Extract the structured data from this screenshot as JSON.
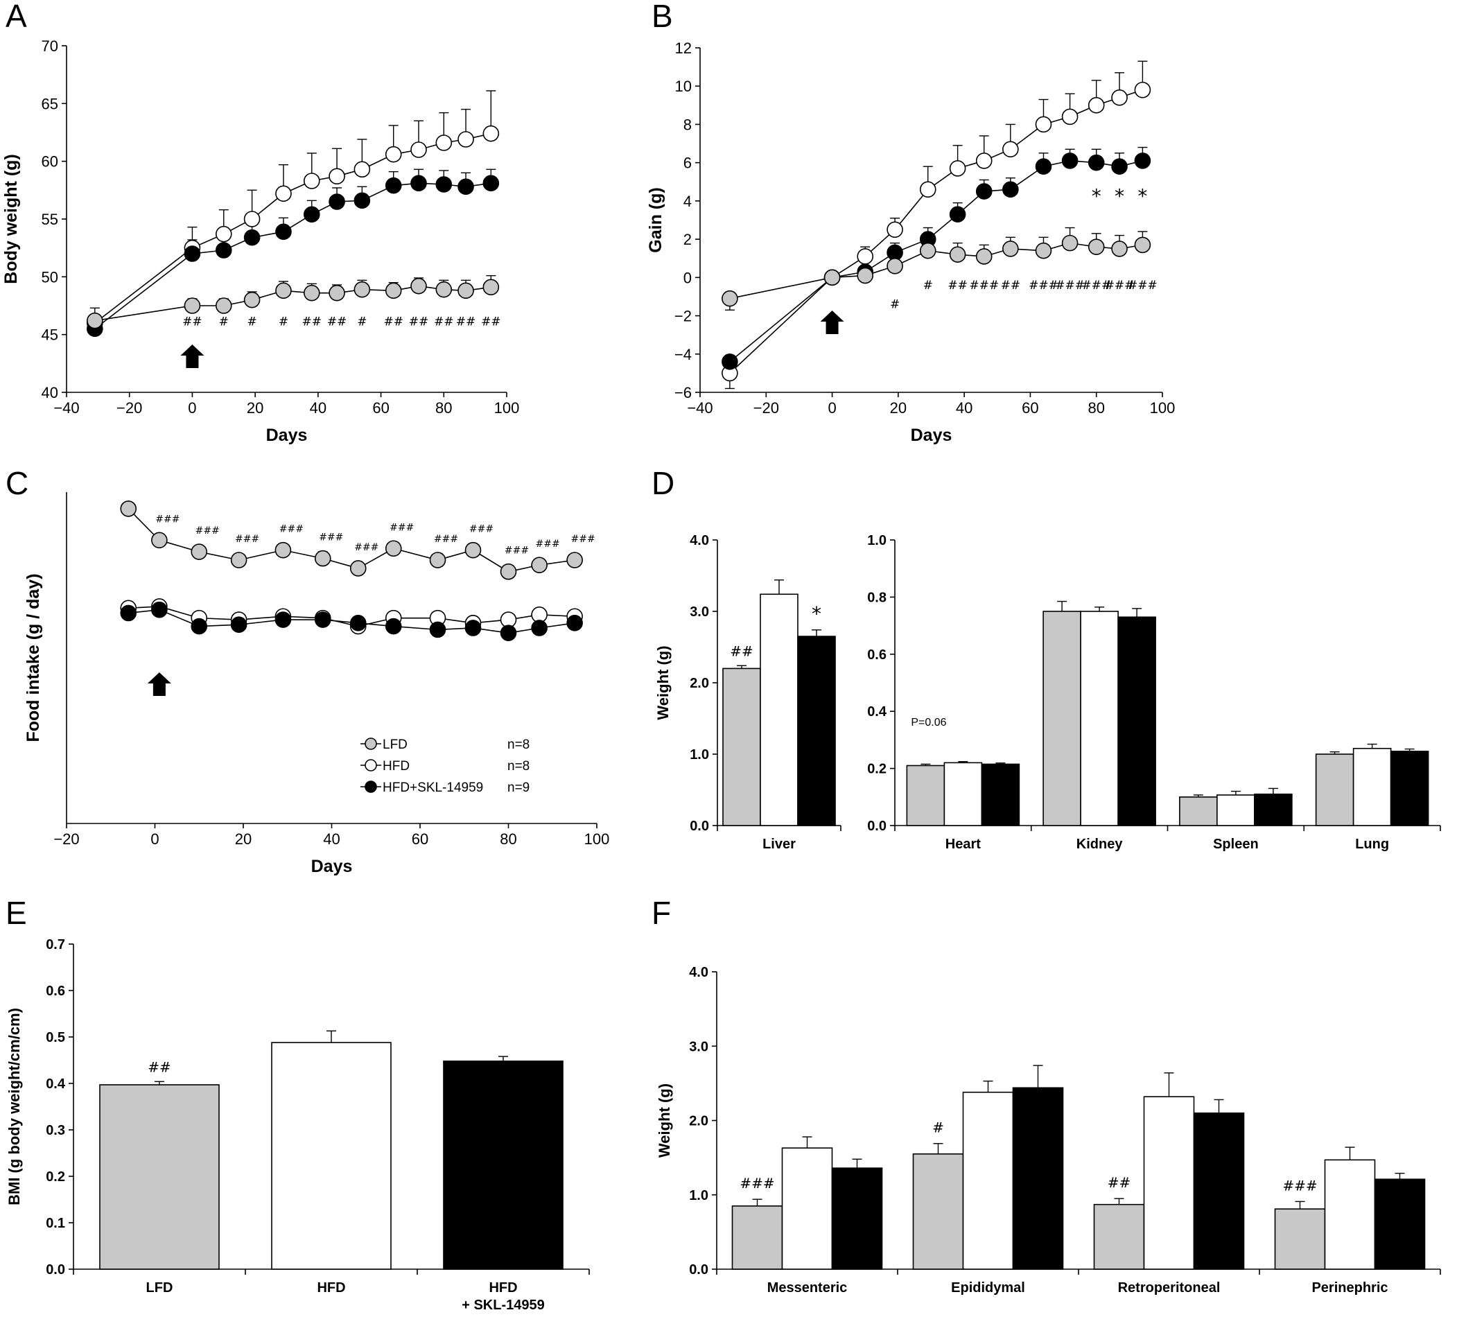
{
  "colors": {
    "lfd": "#c8c8c8",
    "hfd": "#ffffff",
    "skl": "#000000"
  },
  "chart_data": [
    {
      "id": "A",
      "type": "line",
      "panel_label": "A",
      "xlabel": "Days",
      "ylabel": "Body weight (g)",
      "xlim": [
        -40,
        100
      ],
      "ylim": [
        40,
        70
      ],
      "xticks": [
        "−40",
        "−20",
        "0",
        "20",
        "40",
        "60",
        "80",
        "100"
      ],
      "yticks": [
        "40",
        "45",
        "50",
        "55",
        "60",
        "65",
        "70"
      ],
      "x": [
        -31,
        0,
        10,
        19,
        29,
        38,
        46,
        54,
        64,
        72,
        80,
        87,
        95
      ],
      "series": [
        {
          "group": "HFD",
          "values": [
            46.0,
            52.5,
            53.7,
            55.0,
            57.2,
            58.3,
            58.7,
            59.3,
            60.6,
            61.0,
            61.6,
            61.9,
            62.4
          ],
          "errors": [
            0.7,
            1.8,
            2.1,
            2.5,
            2.5,
            2.4,
            2.4,
            2.6,
            2.5,
            2.5,
            2.6,
            2.6,
            3.7
          ]
        },
        {
          "group": "HFD+SKL-14959",
          "values": [
            45.5,
            52.0,
            52.3,
            53.4,
            53.9,
            55.4,
            56.5,
            56.6,
            57.9,
            58.1,
            58.0,
            57.8,
            58.1
          ],
          "errors": [
            1.0,
            1.2,
            1.1,
            1.2,
            1.2,
            1.2,
            1.2,
            1.2,
            1.2,
            1.2,
            1.2,
            1.2,
            1.2
          ]
        },
        {
          "group": "LFD",
          "values": [
            46.2,
            47.5,
            47.5,
            48.0,
            48.8,
            48.6,
            48.6,
            48.9,
            48.8,
            49.2,
            48.9,
            48.8,
            49.1
          ],
          "errors": [
            1.1,
            0.6,
            0.6,
            0.7,
            0.8,
            0.8,
            0.7,
            0.8,
            0.7,
            0.7,
            0.8,
            0.9,
            1.0
          ]
        }
      ],
      "sig_marks": [
        {
          "x": 0,
          "label": "##"
        },
        {
          "x": 10,
          "label": "#"
        },
        {
          "x": 19,
          "label": "#"
        },
        {
          "x": 29,
          "label": "#"
        },
        {
          "x": 38,
          "label": "##"
        },
        {
          "x": 46,
          "label": "##"
        },
        {
          "x": 54,
          "label": "#"
        },
        {
          "x": 64,
          "label": "##"
        },
        {
          "x": 72,
          "label": "##"
        },
        {
          "x": 80,
          "label": "##"
        },
        {
          "x": 87,
          "label": "##"
        },
        {
          "x": 95,
          "label": "##"
        }
      ],
      "arrow_x": 0
    },
    {
      "id": "B",
      "type": "line",
      "panel_label": "B",
      "xlabel": "Days",
      "ylabel": "Gain (g)",
      "xlim": [
        -40,
        100
      ],
      "ylim": [
        -6,
        12
      ],
      "xticks": [
        "−40",
        "−20",
        "0",
        "20",
        "40",
        "60",
        "80",
        "100"
      ],
      "yticks": [
        "−6",
        "−4",
        "−2",
        "0",
        "2",
        "4",
        "6",
        "8",
        "10",
        "12"
      ],
      "x": [
        -31,
        0,
        10,
        19,
        29,
        38,
        46,
        54,
        64,
        72,
        80,
        87,
        94
      ],
      "series": [
        {
          "group": "HFD",
          "values": [
            -5.0,
            0.0,
            1.1,
            2.5,
            4.6,
            5.7,
            6.1,
            6.7,
            8.0,
            8.4,
            9.0,
            9.4,
            9.8
          ],
          "errors": [
            0.8,
            0.0,
            0.5,
            0.6,
            1.2,
            1.2,
            1.3,
            1.3,
            1.3,
            1.2,
            1.3,
            1.3,
            1.5
          ]
        },
        {
          "group": "HFD+SKL-14959",
          "values": [
            -4.4,
            0.0,
            0.3,
            1.3,
            2.0,
            3.3,
            4.5,
            4.6,
            5.8,
            6.1,
            6.0,
            5.8,
            6.1
          ],
          "errors": [
            0.7,
            0.0,
            0.3,
            0.5,
            0.6,
            0.6,
            0.6,
            0.6,
            0.7,
            0.6,
            0.7,
            0.7,
            0.7
          ]
        },
        {
          "group": "LFD",
          "values": [
            -1.1,
            0.0,
            0.1,
            0.6,
            1.4,
            1.2,
            1.1,
            1.5,
            1.4,
            1.8,
            1.6,
            1.5,
            1.7
          ],
          "errors": [
            0.6,
            0.0,
            0.2,
            0.5,
            0.6,
            0.6,
            0.6,
            0.6,
            0.7,
            0.8,
            0.7,
            0.7,
            0.7
          ]
        }
      ],
      "sig_marks": [
        {
          "x": 19,
          "label": "#"
        },
        {
          "x": 29,
          "label": "#"
        },
        {
          "x": 38,
          "label": "##"
        },
        {
          "x": 46,
          "label": "###"
        },
        {
          "x": 54,
          "label": "##"
        },
        {
          "x": 64,
          "label": "###"
        },
        {
          "x": 72,
          "label": "###"
        },
        {
          "x": 80,
          "label": "###"
        },
        {
          "x": 87,
          "label": "###"
        },
        {
          "x": 94,
          "label": "###"
        }
      ],
      "star_marks": [
        {
          "x": 80,
          "label": "*"
        },
        {
          "x": 87,
          "label": "*"
        },
        {
          "x": 94,
          "label": "*"
        }
      ],
      "arrow_x": 0
    },
    {
      "id": "C",
      "type": "line",
      "panel_label": "C",
      "xlabel": "Days",
      "ylabel": "Food intake (g / day)",
      "xlim": [
        -20,
        100
      ],
      "ylim": [
        0,
        10
      ],
      "xticks": [
        "−20",
        "0",
        "20",
        "40",
        "60",
        "80",
        "100"
      ],
      "x": [
        -6,
        1,
        10,
        19,
        29,
        38,
        46,
        54,
        64,
        72,
        80,
        87,
        95
      ],
      "series": [
        {
          "group": "LFD",
          "values": [
            9.5,
            8.55,
            8.2,
            7.95,
            8.25,
            8.0,
            7.7,
            8.3,
            7.95,
            8.25,
            7.6,
            7.8,
            7.95
          ],
          "errors": [
            0.15,
            0.1,
            0.1,
            0.15,
            0.15,
            0.2,
            0.15,
            0.15,
            0.15,
            0.15,
            0.15,
            0.15,
            0.1
          ]
        },
        {
          "group": "HFD",
          "values": [
            6.5,
            6.55,
            6.2,
            6.15,
            6.25,
            6.2,
            5.95,
            6.2,
            6.2,
            6.05,
            6.15,
            6.3,
            6.25
          ],
          "errors": [
            0.1,
            0.15,
            0.15,
            0.1,
            0.1,
            0.1,
            0.1,
            0.1,
            0.15,
            0.15,
            0.15,
            0.15,
            0.1
          ]
        },
        {
          "group": "HFD+SKL-14959",
          "values": [
            6.35,
            6.45,
            5.95,
            6.0,
            6.15,
            6.15,
            6.05,
            5.95,
            5.85,
            5.9,
            5.75,
            5.9,
            6.05
          ],
          "errors": [
            0.1,
            0.15,
            0.1,
            0.1,
            0.1,
            0.1,
            0.1,
            0.1,
            0.1,
            0.1,
            0.1,
            0.1,
            0.1
          ]
        }
      ],
      "sig_marks": [
        {
          "x": 1,
          "label": "###"
        },
        {
          "x": 10,
          "label": "###"
        },
        {
          "x": 19,
          "label": "###"
        },
        {
          "x": 29,
          "label": "###"
        },
        {
          "x": 38,
          "label": "###"
        },
        {
          "x": 46,
          "label": "###"
        },
        {
          "x": 54,
          "label": "###"
        },
        {
          "x": 64,
          "label": "###"
        },
        {
          "x": 72,
          "label": "###"
        },
        {
          "x": 80,
          "label": "###"
        },
        {
          "x": 87,
          "label": "###"
        },
        {
          "x": 95,
          "label": "###"
        }
      ],
      "legend": [
        {
          "group": "LFD",
          "label": "LFD",
          "n": "n=8"
        },
        {
          "group": "HFD",
          "label": "HFD",
          "n": "n=8"
        },
        {
          "group": "HFD+SKL-14959",
          "label": "HFD+SKL-14959",
          "n": "n=9"
        }
      ],
      "arrow_x": 1
    },
    {
      "id": "D-liver",
      "type": "bar",
      "panel_label": "D",
      "ylabel": "Weight (g)",
      "ylim": [
        0,
        4
      ],
      "yticks": [
        "0.0",
        "1.0",
        "2.0",
        "3.0",
        "4.0"
      ],
      "categories": [
        "Liver"
      ],
      "series": [
        {
          "group": "LFD",
          "values": [
            2.2
          ],
          "errors": [
            0.04
          ]
        },
        {
          "group": "HFD",
          "values": [
            3.24
          ],
          "errors": [
            0.2
          ]
        },
        {
          "group": "HFD+SKL-14959",
          "values": [
            2.65
          ],
          "errors": [
            0.09
          ]
        }
      ],
      "annotations": [
        {
          "category": 0,
          "group": "LFD",
          "label": "##"
        },
        {
          "category": 0,
          "group": "HFD+SKL-14959",
          "label": "*"
        }
      ]
    },
    {
      "id": "D-organs",
      "type": "bar",
      "ylim": [
        0,
        1
      ],
      "yticks": [
        "0.0",
        "0.2",
        "0.4",
        "0.6",
        "0.8",
        "1.0"
      ],
      "categories": [
        "Heart",
        "Kidney",
        "Spleen",
        "Lung"
      ],
      "series": [
        {
          "group": "LFD",
          "values": [
            0.21,
            0.75,
            0.1,
            0.25
          ],
          "errors": [
            0.005,
            0.035,
            0.007,
            0.008
          ]
        },
        {
          "group": "HFD",
          "values": [
            0.22,
            0.75,
            0.107,
            0.27
          ],
          "errors": [
            0.004,
            0.015,
            0.013,
            0.015
          ]
        },
        {
          "group": "HFD+SKL-14959",
          "values": [
            0.215,
            0.73,
            0.11,
            0.26
          ],
          "errors": [
            0.004,
            0.03,
            0.02,
            0.008
          ]
        }
      ],
      "note": "P=0.06"
    },
    {
      "id": "E",
      "type": "bar",
      "panel_label": "E",
      "ylabel": "BMI (g body weight/cm/cm)",
      "ylim": [
        0,
        0.7
      ],
      "yticks": [
        "0.0",
        "0.1",
        "0.2",
        "0.3",
        "0.4",
        "0.5",
        "0.6",
        "0.7"
      ],
      "categories": [
        {
          "group": "LFD",
          "label": "LFD",
          "label2": ""
        },
        {
          "group": "HFD",
          "label": "HFD",
          "label2": ""
        },
        {
          "group": "HFD+SKL-14959",
          "label": "HFD",
          "label2": "+ SKL-14959"
        }
      ],
      "values": [
        0.397,
        0.488,
        0.448
      ],
      "errors": [
        0.007,
        0.025,
        0.01
      ],
      "annotations": [
        {
          "category": 0,
          "label": "##"
        }
      ]
    },
    {
      "id": "F",
      "type": "bar",
      "panel_label": "F",
      "ylabel": "Weight (g)",
      "ylim": [
        0,
        4
      ],
      "yticks": [
        "0.0",
        "1.0",
        "2.0",
        "3.0",
        "4.0"
      ],
      "categories": [
        "Messenteric",
        "Epididymal",
        "Retroperitoneal",
        "Perinephric"
      ],
      "series": [
        {
          "group": "LFD",
          "values": [
            0.85,
            1.55,
            0.87,
            0.81
          ],
          "errors": [
            0.09,
            0.14,
            0.08,
            0.1
          ]
        },
        {
          "group": "HFD",
          "values": [
            1.63,
            2.38,
            2.32,
            1.47
          ],
          "errors": [
            0.15,
            0.15,
            0.32,
            0.17
          ]
        },
        {
          "group": "HFD+SKL-14959",
          "values": [
            1.36,
            2.44,
            2.1,
            1.21
          ],
          "errors": [
            0.12,
            0.3,
            0.18,
            0.08
          ]
        }
      ],
      "annotations": [
        {
          "category": 0,
          "group": "LFD",
          "label": "###"
        },
        {
          "category": 1,
          "group": "LFD",
          "label": "#"
        },
        {
          "category": 2,
          "group": "LFD",
          "label": "##"
        },
        {
          "category": 3,
          "group": "LFD",
          "label": "###"
        }
      ]
    }
  ]
}
